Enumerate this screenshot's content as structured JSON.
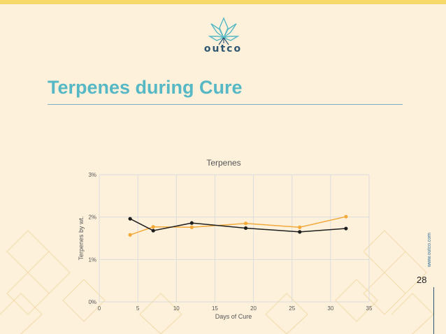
{
  "brand": {
    "name": "outco"
  },
  "slide": {
    "title": "Terpenes during Cure",
    "page_number": "28",
    "side_url": "www.outco.com"
  },
  "colors": {
    "background": "#fdf1dc",
    "top_bar": "#f7d96a",
    "title": "#55b8c4",
    "brand": "#2f5670"
  },
  "chart_data": {
    "type": "line",
    "title": "Terpenes",
    "xlabel": "Days of Cure",
    "ylabel": "Terpenes by wt.",
    "xlim": [
      0,
      35
    ],
    "ylim": [
      0,
      3
    ],
    "x_ticks": [
      "0",
      "5",
      "10",
      "15",
      "20",
      "25",
      "30",
      "35"
    ],
    "y_ticks": [
      "0%",
      "1%",
      "2%",
      "3%"
    ],
    "grid": true,
    "series": [
      {
        "color": "#f4a93b",
        "x": [
          4,
          7,
          12,
          19,
          26,
          32
        ],
        "y": [
          1.58,
          1.77,
          1.76,
          1.85,
          1.76,
          2.01
        ]
      },
      {
        "color": "#1e1e1e",
        "x": [
          4,
          7,
          12,
          19,
          26,
          32
        ],
        "y": [
          1.96,
          1.68,
          1.86,
          1.74,
          1.65,
          1.73
        ]
      }
    ]
  }
}
